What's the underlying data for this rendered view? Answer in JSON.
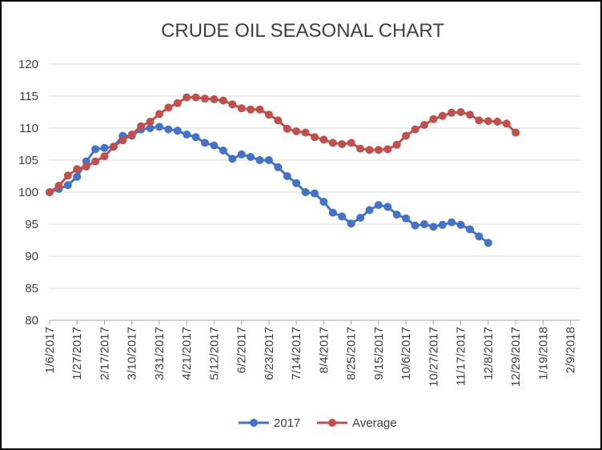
{
  "chart_data": {
    "type": "line",
    "title": "CRUDE OIL SEASONAL CHART",
    "xlabel": "",
    "ylabel": "",
    "ylim": [
      80,
      120
    ],
    "yticks": [
      "80",
      "85",
      "90",
      "95",
      "100",
      "105",
      "110",
      "115",
      "120"
    ],
    "xticks": [
      "1/6/2017",
      "1/27/2017",
      "2/17/2017",
      "3/10/2017",
      "3/31/2017",
      "4/21/2017",
      "5/12/2017",
      "6/2/2017",
      "6/23/2017",
      "7/14/2017",
      "8/4/2017",
      "8/25/2017",
      "9/15/2017",
      "10/6/2017",
      "10/27/2017",
      "11/17/2017",
      "12/8/2017",
      "12/29/2017",
      "1/19/2018",
      "2/9/2018"
    ],
    "xlim": [
      "1/6/2017",
      "2/9/2018"
    ],
    "grid": "horizontal",
    "legend": "bottom",
    "series": [
      {
        "name": "2017",
        "color": "#4472C4",
        "values": [
          100.0,
          100.5,
          101.1,
          102.4,
          104.8,
          106.7,
          106.9,
          107.1,
          108.8,
          108.8,
          109.8,
          110.0,
          110.2,
          109.8,
          109.6,
          109.0,
          108.6,
          107.7,
          107.3,
          106.5,
          105.2,
          105.9,
          105.5,
          105.0,
          105.0,
          103.9,
          102.5,
          101.4,
          100.0,
          99.8,
          98.5,
          96.8,
          96.2,
          95.1,
          96.0,
          97.2,
          98.0,
          97.7,
          96.5,
          95.9,
          94.8,
          95.0,
          94.6,
          94.9,
          95.3,
          94.9,
          94.2,
          93.1,
          92.1
        ]
      },
      {
        "name": "Average",
        "color": "#C0504D",
        "values": [
          100.0,
          101.0,
          102.6,
          103.6,
          104.0,
          104.8,
          105.6,
          107.1,
          108.1,
          109.0,
          110.3,
          111.0,
          112.2,
          113.2,
          113.9,
          114.8,
          114.8,
          114.6,
          114.5,
          114.3,
          113.7,
          113.1,
          112.9,
          112.9,
          112.1,
          111.2,
          109.9,
          109.5,
          109.3,
          108.6,
          108.2,
          107.7,
          107.5,
          107.7,
          106.8,
          106.6,
          106.6,
          106.7,
          107.4,
          108.8,
          109.8,
          110.5,
          111.4,
          111.9,
          112.4,
          112.5,
          112.1,
          111.2,
          111.1,
          111.0,
          110.7,
          109.3
        ]
      }
    ]
  }
}
